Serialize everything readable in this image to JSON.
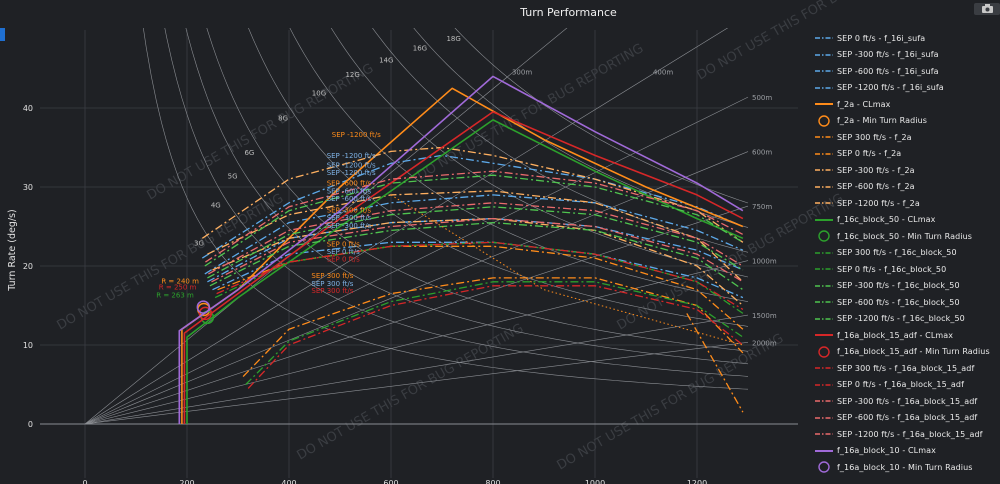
{
  "header": {
    "title": "Turn Performance"
  },
  "watermark": "DO NOT USE THIS FOR BUG REPORTING",
  "chart_data": {
    "type": "line",
    "title": "Turn Performance",
    "xlabel": "",
    "ylabel": "Turn Rate (deg/s)",
    "xlim": [
      -40,
      1390
    ],
    "ylim": [
      -4,
      48.5
    ],
    "xticks": [
      "0",
      "200",
      "400",
      "600",
      "800",
      "1000",
      "1200"
    ],
    "xtick_values": [
      0,
      200,
      400,
      600,
      800,
      1000,
      1200
    ],
    "yticks": [
      "0",
      "10",
      "20",
      "30",
      "40"
    ],
    "ytick_values": [
      0,
      10,
      20,
      30,
      40
    ],
    "grid": true,
    "g_lines": [
      {
        "label": "3G",
        "g": 3
      },
      {
        "label": "4G",
        "g": 4
      },
      {
        "label": "5G",
        "g": 5
      },
      {
        "label": "6G",
        "g": 6
      },
      {
        "label": "8G",
        "g": 8
      },
      {
        "label": "10G",
        "g": 10
      },
      {
        "label": "12G",
        "g": 12
      },
      {
        "label": "14G",
        "g": 14
      },
      {
        "label": "16G",
        "g": 16
      },
      {
        "label": "18G",
        "g": 18
      }
    ],
    "radius_lines": [
      {
        "label": "300m",
        "r": 300
      },
      {
        "label": "400m",
        "r": 400
      },
      {
        "label": "500m",
        "r": 500
      },
      {
        "label": "600m",
        "r": 600
      },
      {
        "label": "750m",
        "r": 750
      },
      {
        "label": "1000m",
        "r": 1000
      },
      {
        "label": "1500m",
        "r": 1500
      },
      {
        "label": "2000m",
        "r": 2000
      }
    ],
    "series": [
      {
        "name": "SEP 0 ft/s - f_16i_sufa",
        "color": "#5da9e9",
        "dash": "dashdot",
        "x": [
          250,
          400,
          600,
          800,
          1000,
          1200,
          1290
        ],
        "y": [
          17,
          21.5,
          23,
          23,
          21.5,
          18.5,
          16
        ]
      },
      {
        "name": "SEP -300 ft/s - f_16i_sufa",
        "color": "#5da9e9",
        "dash": "dashdot",
        "x": [
          240,
          400,
          600,
          800,
          1000,
          1200,
          1290
        ],
        "y": [
          18,
          23.5,
          25.5,
          26,
          25,
          22,
          19.5
        ]
      },
      {
        "name": "SEP -600 ft/s - f_16i_sufa",
        "color": "#5da9e9",
        "dash": "dashdot",
        "x": [
          235,
          400,
          600,
          800,
          1000,
          1200,
          1290
        ],
        "y": [
          19,
          25.5,
          28,
          29,
          28,
          24.5,
          22
        ]
      },
      {
        "name": "SEP -1200 ft/s - f_16i_sufa",
        "color": "#5da9e9",
        "dash": "dashdot",
        "x": [
          230,
          400,
          600,
          700,
          800,
          1000,
          1200,
          1290
        ],
        "y": [
          21,
          28,
          33,
          34,
          33,
          31,
          27.5,
          25
        ]
      },
      {
        "name": "f_2a - CLmax",
        "color": "#ff8c1a",
        "dash": "solid",
        "x": [
          190,
          190,
          300,
          500,
          720,
          900,
          1100,
          1290
        ],
        "y": [
          0,
          12,
          17,
          30,
          42.5,
          36,
          30,
          25
        ]
      },
      {
        "name": "f_2a - Min Turn Radius",
        "color": "#ff8c1a",
        "dash": "marker",
        "x": [
          233
        ],
        "y": [
          14.5
        ],
        "label": "R = 240 m"
      },
      {
        "name": "SEP 300 ft/s - f_2a",
        "color": "#ff8c1a",
        "dash": "dashdot",
        "x": [
          310,
          400,
          600,
          800,
          1000,
          1200,
          1290
        ],
        "y": [
          6,
          12,
          16.5,
          18.5,
          18.5,
          15,
          9
        ]
      },
      {
        "name": "SEP 0 ft/s - f_2a",
        "color": "#ff8c1a",
        "dash": "dashdot",
        "x": [
          260,
          400,
          600,
          800,
          1000,
          1200,
          1290
        ],
        "y": [
          17,
          20.5,
          22.5,
          22.5,
          21,
          17,
          12
        ]
      },
      {
        "name": "SEP -300 ft/s - f_2a",
        "color": "#ffb060",
        "dash": "dashdot",
        "x": [
          250,
          400,
          600,
          800,
          1000,
          1200,
          1290
        ],
        "y": [
          19.5,
          23.5,
          25.5,
          26,
          24.5,
          20,
          15
        ]
      },
      {
        "name": "SEP -600 ft/s - f_2a",
        "color": "#ffb060",
        "dash": "dashdot",
        "x": [
          240,
          400,
          600,
          800,
          1000,
          1200,
          1290
        ],
        "y": [
          21.5,
          26.5,
          29,
          29.5,
          28,
          23.5,
          18
        ]
      },
      {
        "name": "SEP -1200 ft/s - f_2a",
        "color": "#ffb060",
        "dash": "dashdot",
        "x": [
          230,
          400,
          600,
          700,
          800,
          1000,
          1200,
          1290
        ],
        "y": [
          23.5,
          31,
          34.5,
          35,
          34,
          31,
          27,
          23
        ]
      },
      {
        "name": "f_16c_block_50 - CLmax",
        "color": "#2ca02c",
        "dash": "solid",
        "x": [
          200,
          200,
          300,
          500,
          800,
          1000,
          1200,
          1290
        ],
        "y": [
          0,
          11,
          16,
          25,
          38.5,
          32,
          26,
          23.5
        ]
      },
      {
        "name": "f_16c_block_50 - Min Turn Radius",
        "color": "#2ca02c",
        "dash": "marker",
        "x": [
          240
        ],
        "y": [
          13.5
        ],
        "label": "R = 263 m"
      },
      {
        "name": "SEP 300 ft/s - f_16c_block_50",
        "color": "#2ca02c",
        "dash": "dashdot",
        "x": [
          315,
          400,
          600,
          800,
          1000,
          1200,
          1290
        ],
        "y": [
          5,
          10.5,
          15.5,
          18,
          18,
          15,
          11
        ]
      },
      {
        "name": "SEP 0 ft/s - f_16c_block_50",
        "color": "#2ca02c",
        "dash": "dashdot",
        "x": [
          255,
          400,
          600,
          800,
          1000,
          1200,
          1290
        ],
        "y": [
          16,
          20.5,
          22.5,
          23,
          21.5,
          18,
          14
        ]
      },
      {
        "name": "SEP -300 ft/s - f_16c_block_50",
        "color": "#4fc44f",
        "dash": "dashdot",
        "x": [
          245,
          400,
          600,
          800,
          1000,
          1200,
          1290
        ],
        "y": [
          17.5,
          22.5,
          24.5,
          25.5,
          24.5,
          21,
          17
        ]
      },
      {
        "name": "SEP -600 ft/s - f_16c_block_50",
        "color": "#4fc44f",
        "dash": "dashdot",
        "x": [
          240,
          400,
          600,
          800,
          1000,
          1200,
          1290
        ],
        "y": [
          18.5,
          24,
          26.5,
          27.5,
          26.5,
          23,
          19.5
        ]
      },
      {
        "name": "SEP -1200 ft/s - f_16c_block_50",
        "color": "#4fc44f",
        "dash": "dashdot",
        "x": [
          235,
          400,
          600,
          800,
          1000,
          1200,
          1290
        ],
        "y": [
          20,
          27,
          30.5,
          31.5,
          30,
          26.5,
          23
        ]
      },
      {
        "name": "f_16a_block_15_adf - CLmax",
        "color": "#d62728",
        "dash": "solid",
        "x": [
          195,
          195,
          300,
          500,
          800,
          1000,
          1200,
          1290
        ],
        "y": [
          0,
          11.5,
          16.5,
          26,
          39.5,
          34,
          29,
          26
        ]
      },
      {
        "name": "f_16a_block_15_adf - Min Turn Radius",
        "color": "#d62728",
        "dash": "marker",
        "x": [
          236
        ],
        "y": [
          14
        ],
        "label": "R = 250 m"
      },
      {
        "name": "SEP 300 ft/s - f_16a_block_15_adf",
        "color": "#d62728",
        "dash": "dashdot",
        "x": [
          320,
          400,
          600,
          800,
          1000,
          1200,
          1290
        ],
        "y": [
          4.5,
          10,
          15,
          17.5,
          17.5,
          14.5,
          10
        ]
      },
      {
        "name": "SEP 0 ft/s - f_16a_block_15_adf",
        "color": "#d62728",
        "dash": "dashdot",
        "x": [
          258,
          400,
          600,
          800,
          1000,
          1200,
          1290
        ],
        "y": [
          16.5,
          20.5,
          22.5,
          23,
          21.5,
          18,
          14.5
        ]
      },
      {
        "name": "SEP -300 ft/s - f_16a_block_15_adf",
        "color": "#ea6b6c",
        "dash": "dashdot",
        "x": [
          248,
          400,
          600,
          800,
          1000,
          1200,
          1290
        ],
        "y": [
          18,
          23,
          25,
          26,
          25,
          21.5,
          18
        ]
      },
      {
        "name": "SEP -600 ft/s - f_16a_block_15_adf",
        "color": "#ea6b6c",
        "dash": "dashdot",
        "x": [
          242,
          400,
          600,
          800,
          1000,
          1200,
          1290
        ],
        "y": [
          19,
          24.5,
          27,
          28,
          27,
          23.5,
          20
        ]
      },
      {
        "name": "SEP -1200 ft/s - f_16a_block_15_adf",
        "color": "#ea6b6c",
        "dash": "dashdot",
        "x": [
          236,
          400,
          600,
          800,
          1000,
          1200,
          1290
        ],
        "y": [
          20.5,
          27.5,
          31,
          32,
          30.5,
          27,
          24
        ]
      },
      {
        "name": "f_16a_block_10 - CLmax",
        "color": "#a06ad8",
        "dash": "solid",
        "x": [
          185,
          185,
          300,
          500,
          800,
          1000,
          1200,
          1290
        ],
        "y": [
          0,
          11.8,
          17,
          27,
          44,
          37,
          30.5,
          27
        ]
      },
      {
        "name": "f_16a_block_10 - Min Turn Radius",
        "color": "#a06ad8",
        "dash": "marker",
        "x": [
          232
        ],
        "y": [
          14.8
        ]
      }
    ],
    "annotations": [
      {
        "text": "SEP -1200 ft/s",
        "color": "#ff8c1a",
        "x": 680,
        "y": 36.3
      },
      {
        "text": "SEP -1200 ft/s",
        "color": "#7fb2e5",
        "x": 670,
        "y": 33.7
      },
      {
        "text": "SEP -1200 ft/s",
        "color": "#7fb2e5",
        "x": 670,
        "y": 32.5
      },
      {
        "text": "SEP -1200 ft/s",
        "color": "#7fb2e5",
        "x": 670,
        "y": 31.5
      },
      {
        "text": "SEP -600 ft/s",
        "color": "#ff8c1a",
        "x": 670,
        "y": 30.2
      },
      {
        "text": "SEP -600 ft/s",
        "color": "#7fb2e5",
        "x": 670,
        "y": 29.2
      },
      {
        "text": "SEP -600 ft/s",
        "color": "#7fb2e5",
        "x": 670,
        "y": 28.2
      },
      {
        "text": "SEP -300 ft/s",
        "color": "#ff8c1a",
        "x": 670,
        "y": 26.8
      },
      {
        "text": "SEP -300 ft/s",
        "color": "#7fb2e5",
        "x": 670,
        "y": 25.8
      },
      {
        "text": "SEP -300 ft/s",
        "color": "#7fb2e5",
        "x": 670,
        "y": 24.8
      },
      {
        "text": "SEP 0 ft/s",
        "color": "#ff8c1a",
        "x": 670,
        "y": 22.5
      },
      {
        "text": "SEP 0 ft/s",
        "color": "#7fb2e5",
        "x": 670,
        "y": 21.5
      },
      {
        "text": "SEP 0 ft/s",
        "color": "#d62728",
        "x": 670,
        "y": 20.6
      },
      {
        "text": "SEP 300 ft/s",
        "color": "#ff8c1a",
        "x": 640,
        "y": 18.5
      },
      {
        "text": "SEP 300 ft/s",
        "color": "#7fb2e5",
        "x": 640,
        "y": 17.5
      },
      {
        "text": "SEP 300 ft/s",
        "color": "#d62728",
        "x": 640,
        "y": 16.6
      }
    ],
    "min_radius_labels": [
      {
        "text": "R = 240 m",
        "color": "#ff8c1a",
        "x": 185,
        "y": 17.8
      },
      {
        "text": "R = 250 m",
        "color": "#d62728",
        "x": 180,
        "y": 17.0
      },
      {
        "text": "R = 263 m",
        "color": "#2ca02c",
        "x": 175,
        "y": 16.0
      }
    ],
    "legend_placement": "right"
  }
}
